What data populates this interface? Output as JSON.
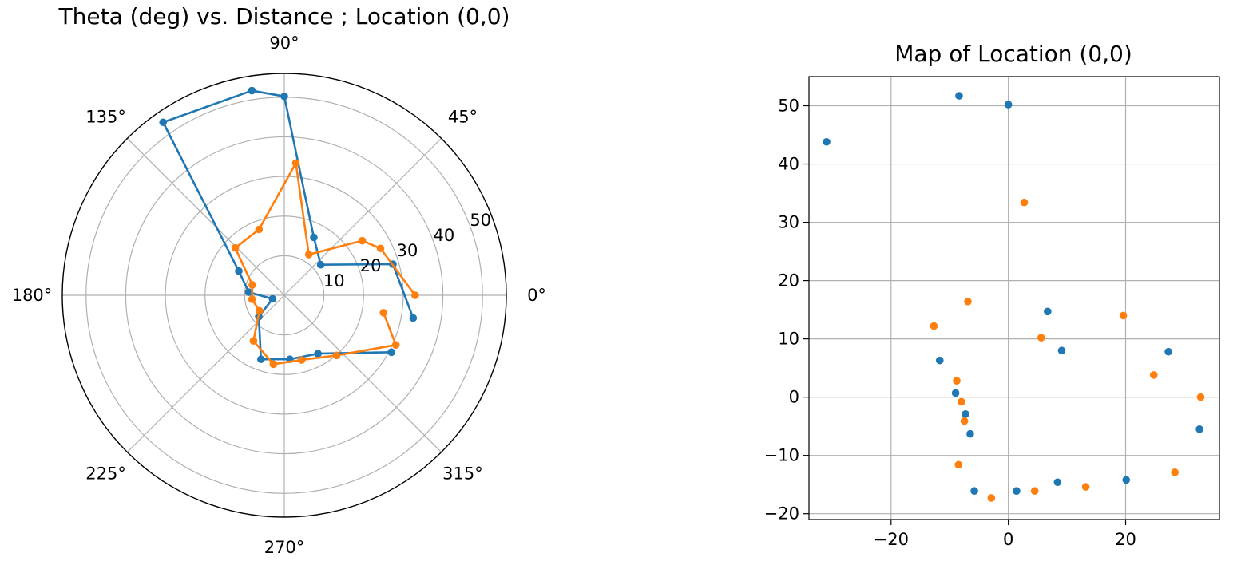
{
  "chart_data": [
    {
      "type": "line",
      "projection": "polar",
      "title": "Theta (deg) vs. Distance ; Location (0,0)",
      "theta_ticks": [
        "0°",
        "45°",
        "90°",
        "135°",
        "180°",
        "225°",
        "270°",
        "315°"
      ],
      "r_ticks": [
        "10",
        "20",
        "30",
        "40",
        "50"
      ],
      "r_tick_values": [
        10,
        20,
        30,
        40,
        50
      ],
      "rlim": [
        0,
        56
      ],
      "grid": true,
      "series": [
        {
          "color": "#1f77b4",
          "points": [
            {
              "theta": 350,
              "r": 33.0
            },
            {
              "theta": 16,
              "r": 28.5
            },
            {
              "theta": 40,
              "r": 12.0
            },
            {
              "theta": 63,
              "r": 16.4
            },
            {
              "theta": 90,
              "r": 50.2
            },
            {
              "theta": 99,
              "r": 52.3
            },
            {
              "theta": 125,
              "r": 53.3
            },
            {
              "theta": 152,
              "r": 13.0
            },
            {
              "theta": 175,
              "r": 9.0
            },
            {
              "theta": 197,
              "r": 3.1
            },
            {
              "theta": 220,
              "r": 8.4
            },
            {
              "theta": 250,
              "r": 17.2
            },
            {
              "theta": 275,
              "r": 16.2
            },
            {
              "theta": 300,
              "r": 17.0
            },
            {
              "theta": 332,
              "r": 30.6
            }
          ]
        },
        {
          "color": "#ff7f0e",
          "points": [
            {
              "theta": 0,
              "r": 33.0
            },
            {
              "theta": 26,
              "r": 27.0
            },
            {
              "theta": 35,
              "r": 24.0
            },
            {
              "theta": 59,
              "r": 12.0
            },
            {
              "theta": 85,
              "r": 33.5
            },
            {
              "theta": 111,
              "r": 17.8
            },
            {
              "theta": 136,
              "r": 17.2
            },
            {
              "theta": 162,
              "r": 8.5
            },
            {
              "theta": 187,
              "r": 8.2
            },
            {
              "theta": 212,
              "r": 7.4
            },
            {
              "theta": 236,
              "r": 13.9
            },
            {
              "theta": 261,
              "r": 17.6
            },
            {
              "theta": 285,
              "r": 16.9
            },
            {
              "theta": 311,
              "r": 20.1
            },
            {
              "theta": 336,
              "r": 30.8
            },
            {
              "theta": 350,
              "r": 25.4
            }
          ]
        }
      ]
    },
    {
      "type": "scatter",
      "title": "Map of Location (0,0)",
      "xlim": [
        -34,
        36
      ],
      "ylim": [
        -21,
        55
      ],
      "x_ticks": [
        -20,
        0,
        20
      ],
      "x_tick_labels": [
        "−20",
        "0",
        "20"
      ],
      "y_ticks": [
        -20,
        -10,
        0,
        10,
        20,
        30,
        40,
        50
      ],
      "y_tick_labels": [
        "−20",
        "−10",
        "0",
        "10",
        "20",
        "30",
        "40",
        "50"
      ],
      "grid": true,
      "series": [
        {
          "color": "#1f77b4",
          "points": [
            {
              "x": -31.0,
              "y": 43.8
            },
            {
              "x": -8.4,
              "y": 51.7
            },
            {
              "x": 0.0,
              "y": 50.2
            },
            {
              "x": 6.7,
              "y": 14.7
            },
            {
              "x": 9.1,
              "y": 8.0
            },
            {
              "x": 27.3,
              "y": 7.8
            },
            {
              "x": 32.6,
              "y": -5.5
            },
            {
              "x": 20.1,
              "y": -14.2
            },
            {
              "x": 8.4,
              "y": -14.6
            },
            {
              "x": 1.4,
              "y": -16.1
            },
            {
              "x": -5.8,
              "y": -16.1
            },
            {
              "x": -6.5,
              "y": -6.3
            },
            {
              "x": -7.3,
              "y": -2.9
            },
            {
              "x": -9.0,
              "y": 0.7
            },
            {
              "x": -11.7,
              "y": 6.3
            }
          ]
        },
        {
          "color": "#ff7f0e",
          "points": [
            {
              "x": 2.7,
              "y": 33.4
            },
            {
              "x": -6.9,
              "y": 16.4
            },
            {
              "x": -12.7,
              "y": 12.2
            },
            {
              "x": 5.6,
              "y": 10.2
            },
            {
              "x": 19.6,
              "y": 14.0
            },
            {
              "x": 24.8,
              "y": 3.8
            },
            {
              "x": 32.8,
              "y": 0.0
            },
            {
              "x": 28.4,
              "y": -12.9
            },
            {
              "x": 13.2,
              "y": -15.4
            },
            {
              "x": 4.5,
              "y": -16.1
            },
            {
              "x": -2.9,
              "y": -17.3
            },
            {
              "x": -8.5,
              "y": -11.6
            },
            {
              "x": -7.5,
              "y": -4.1
            },
            {
              "x": -8.0,
              "y": -0.8
            },
            {
              "x": -8.8,
              "y": 2.8
            }
          ]
        }
      ]
    }
  ]
}
